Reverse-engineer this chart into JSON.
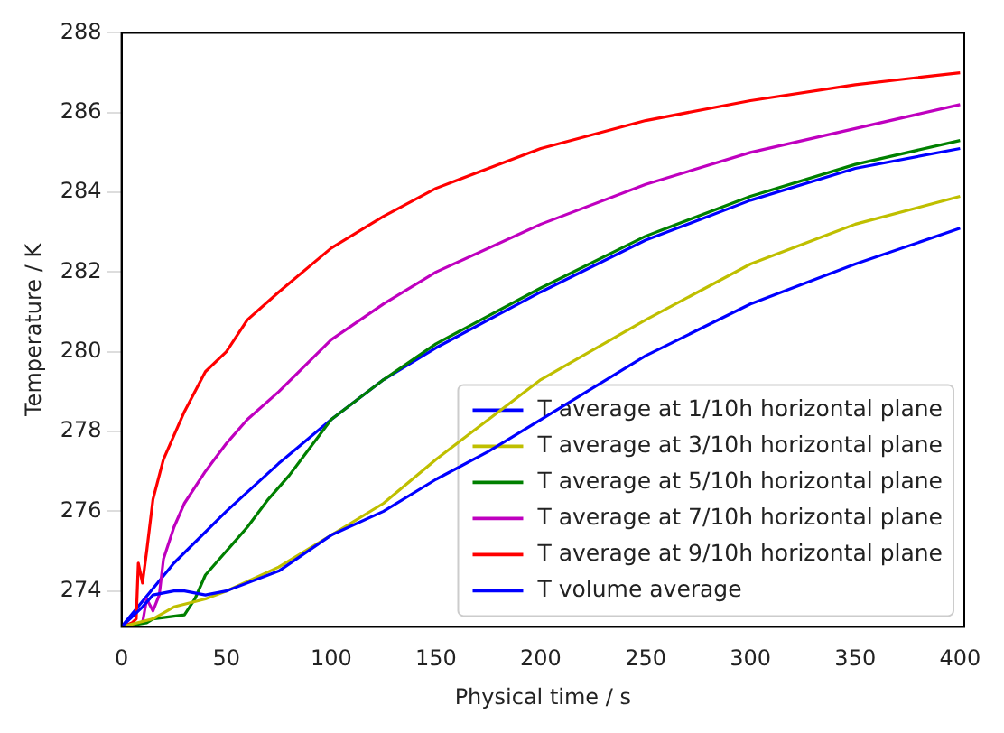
{
  "chart_data": {
    "type": "line",
    "xlabel": "Physical time / s",
    "ylabel": "Temperature / K",
    "xlim": [
      0,
      402
    ],
    "ylim": [
      273.1,
      288
    ],
    "xticks": [
      0,
      50,
      100,
      150,
      200,
      250,
      300,
      350,
      400
    ],
    "yticks": [
      274,
      276,
      278,
      280,
      282,
      284,
      286,
      288
    ],
    "legend": "bottom right",
    "grid": false,
    "marker": "none",
    "line_style": "solid",
    "series": [
      {
        "name": "T average at 1/10h horizontal plane",
        "color": "#0000ff",
        "x": [
          0,
          10,
          15,
          25,
          30,
          40,
          50,
          75,
          100,
          125,
          150,
          175,
          200,
          250,
          300,
          350,
          400
        ],
        "values": [
          273.1,
          273.6,
          273.9,
          274.0,
          274.0,
          273.9,
          274.0,
          274.5,
          275.4,
          276.0,
          276.8,
          277.5,
          278.3,
          279.9,
          281.2,
          282.2,
          283.1
        ]
      },
      {
        "name": "T average at 3/10h horizontal plane",
        "color": "#bfbf00",
        "x": [
          0,
          15,
          25,
          40,
          50,
          75,
          100,
          125,
          150,
          175,
          200,
          250,
          300,
          350,
          400
        ],
        "values": [
          273.1,
          273.3,
          273.6,
          273.8,
          274.0,
          274.6,
          275.4,
          276.2,
          277.3,
          278.3,
          279.3,
          280.8,
          282.2,
          283.2,
          283.9
        ]
      },
      {
        "name": "T average at 5/10h horizontal plane",
        "color": "#008000",
        "x": [
          0,
          12,
          15,
          30,
          35,
          40,
          50,
          60,
          70,
          80,
          100,
          125,
          150,
          200,
          250,
          300,
          350,
          400
        ],
        "values": [
          273.1,
          273.2,
          273.3,
          273.4,
          273.8,
          274.4,
          275.0,
          275.6,
          276.3,
          276.9,
          278.3,
          279.3,
          280.2,
          281.6,
          282.9,
          283.9,
          284.7,
          285.3
        ]
      },
      {
        "name": "T average at 7/10h horizontal plane",
        "color": "#bf00bf",
        "x": [
          0,
          10,
          12,
          15,
          18,
          20,
          25,
          30,
          40,
          50,
          60,
          75,
          100,
          125,
          150,
          200,
          250,
          300,
          350,
          400
        ],
        "values": [
          273.1,
          273.2,
          273.8,
          273.5,
          273.9,
          274.8,
          275.6,
          276.2,
          277.0,
          277.7,
          278.3,
          279.0,
          280.3,
          281.2,
          282.0,
          283.2,
          284.2,
          285.0,
          285.6,
          286.2
        ]
      },
      {
        "name": "T average at 9/10h horizontal plane",
        "color": "#ff0000",
        "x": [
          0,
          5,
          7,
          8,
          10,
          12,
          15,
          20,
          25,
          30,
          40,
          50,
          60,
          75,
          100,
          125,
          150,
          175,
          200,
          250,
          300,
          350,
          400
        ],
        "values": [
          273.1,
          273.2,
          273.3,
          274.7,
          274.2,
          275.0,
          276.3,
          277.3,
          277.9,
          278.5,
          279.5,
          280.0,
          280.8,
          281.5,
          282.6,
          283.4,
          284.1,
          284.6,
          285.1,
          285.8,
          286.3,
          286.7,
          287.0
        ]
      },
      {
        "name": "T volume average",
        "color": "#0000ff",
        "x": [
          0,
          25,
          50,
          75,
          100,
          125,
          150,
          200,
          250,
          300,
          350,
          400
        ],
        "values": [
          273.1,
          274.7,
          276.0,
          277.2,
          278.3,
          279.3,
          280.1,
          281.5,
          282.8,
          283.8,
          284.6,
          285.1
        ]
      }
    ]
  }
}
